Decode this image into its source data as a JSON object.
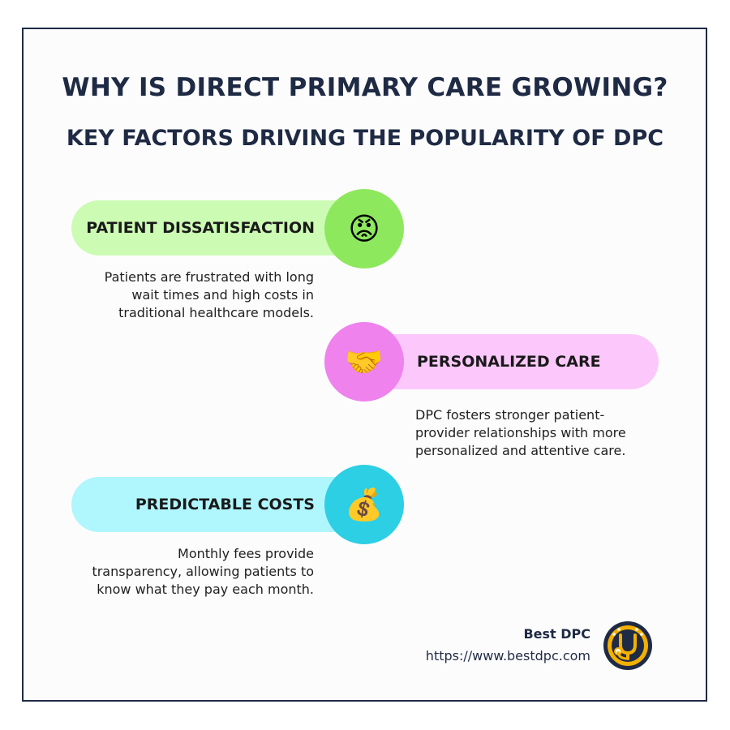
{
  "header": {
    "title": "WHY IS DIRECT PRIMARY CARE GROWING?",
    "subtitle": "KEY FACTORS DRIVING THE POPULARITY OF DPC"
  },
  "factors": [
    {
      "label": "PATIENT DISSATISFACTION",
      "icon": "angry-face-icon",
      "glyph": "😡",
      "description": "Patients are frustrated with long\nwait times and high costs in\ntraditional healthcare models.",
      "pill_color": "#ccfcb4",
      "circle_color": "#8ee85e"
    },
    {
      "label": "PERSONALIZED CARE",
      "icon": "handshake-icon",
      "glyph": "🤝",
      "description": "DPC fosters stronger patient-\nprovider relationships with more\npersonalized and attentive care.",
      "pill_color": "#fcc8fb",
      "circle_color": "#ef82ec"
    },
    {
      "label": "PREDICTABLE COSTS",
      "icon": "money-bag-icon",
      "glyph": "💰",
      "description": "Monthly fees provide\ntransparency, allowing patients to\nknow what they pay each month.",
      "pill_color": "#b0f6fd",
      "circle_color": "#2ccfe3"
    }
  ],
  "footer": {
    "brand_name": "Best DPC",
    "url": "https://www.bestdpc.com",
    "logo_icon": "stethoscope-logo-icon"
  },
  "colors": {
    "navy": "#1f2a44",
    "logo_yellow": "#f4b000"
  }
}
